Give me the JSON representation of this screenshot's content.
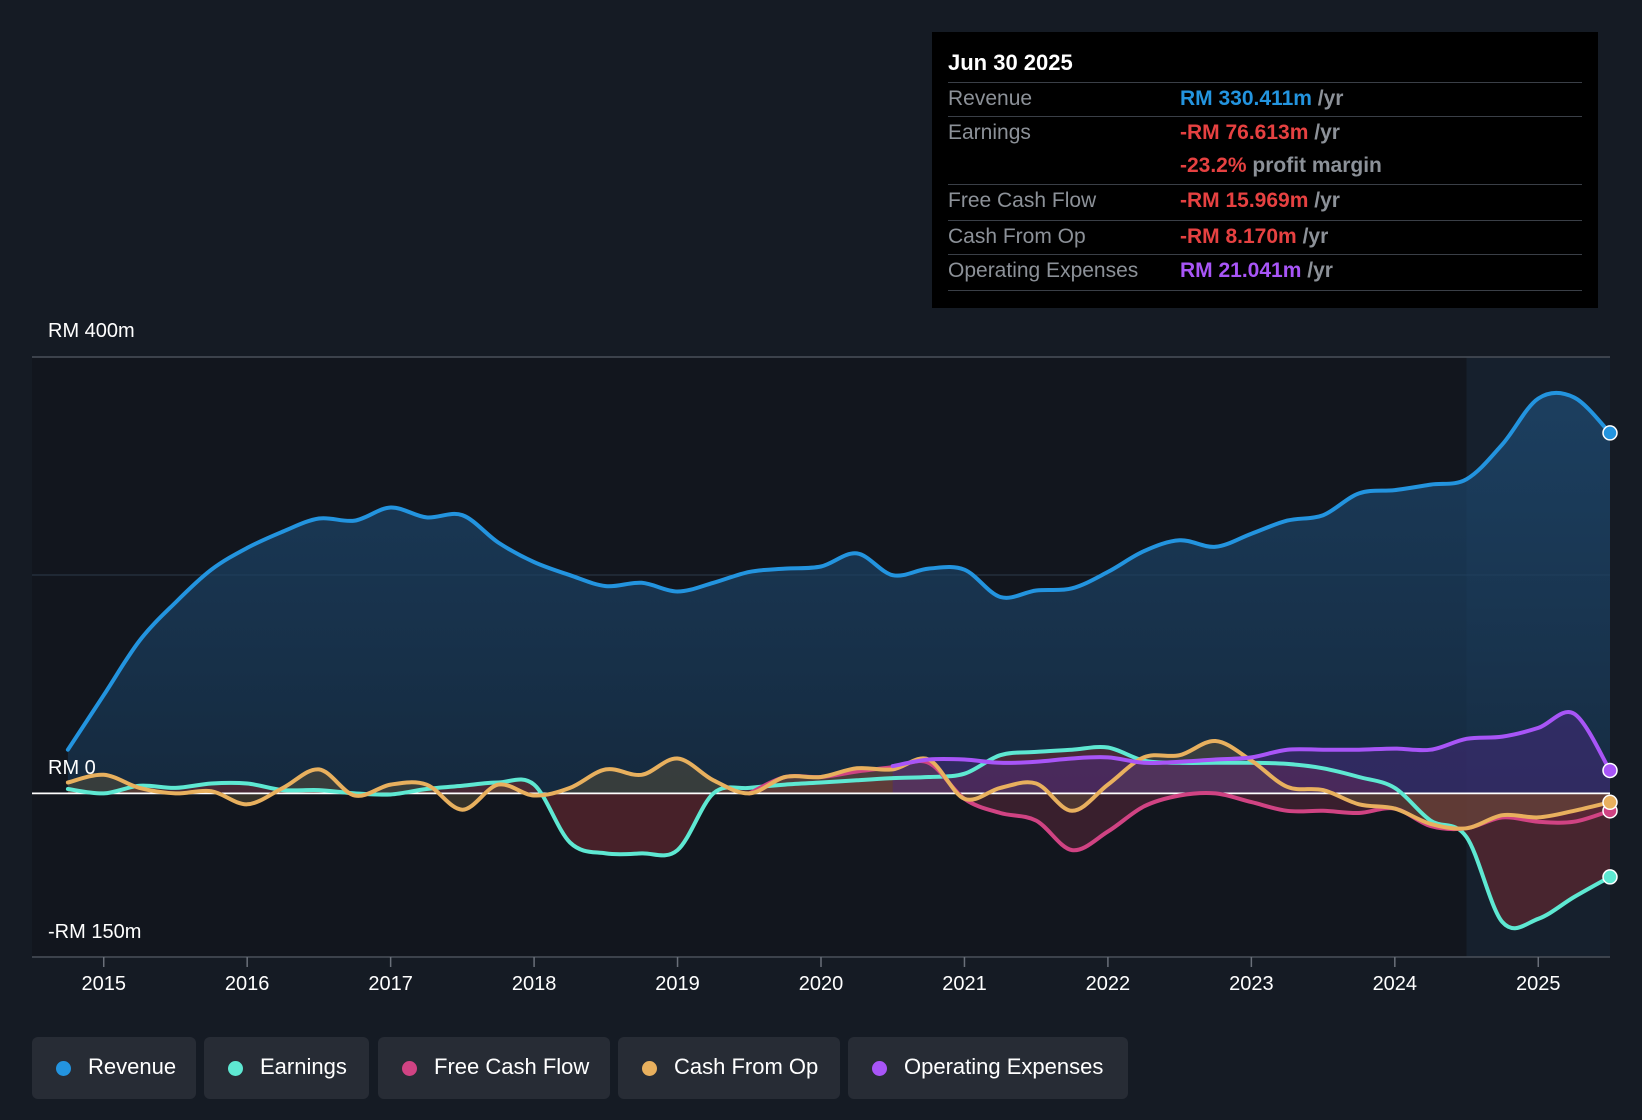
{
  "tooltip": {
    "date": "Jun 30 2025",
    "rows": [
      {
        "label": "Revenue",
        "value": "RM 330.411m",
        "unit": "/yr",
        "color": "#2394df"
      },
      {
        "label": "Earnings",
        "value": "-RM 76.613m",
        "unit": "/yr",
        "color": "#e64141"
      },
      {
        "label": "",
        "value": "-23.2%",
        "unit": "profit margin",
        "color": "#e64141"
      },
      {
        "label": "Free Cash Flow",
        "value": "-RM 15.969m",
        "unit": "/yr",
        "color": "#e64141"
      },
      {
        "label": "Cash From Op",
        "value": "-RM 8.170m",
        "unit": "/yr",
        "color": "#e64141"
      },
      {
        "label": "Operating Expenses",
        "value": "RM 21.041m",
        "unit": "/yr",
        "color": "#a855f7"
      }
    ]
  },
  "y_labels": {
    "top": "RM 400m",
    "zero": "RM 0",
    "bottom": "-RM 150m"
  },
  "chart_data": {
    "type": "line",
    "title": "",
    "xlabel": "",
    "ylabel": "",
    "xlim": [
      2014.5,
      2025.5
    ],
    "ylim": [
      -150,
      400
    ],
    "x_ticks": [
      "2015",
      "2016",
      "2017",
      "2018",
      "2019",
      "2020",
      "2021",
      "2022",
      "2023",
      "2024",
      "2025"
    ],
    "forecast_start": 2024.5,
    "series": [
      {
        "name": "Revenue",
        "color": "#2394df",
        "points": [
          [
            2014.75,
            40
          ],
          [
            2015,
            90
          ],
          [
            2015.25,
            140
          ],
          [
            2015.5,
            175
          ],
          [
            2015.75,
            205
          ],
          [
            2016,
            225
          ],
          [
            2016.25,
            240
          ],
          [
            2016.5,
            252
          ],
          [
            2016.75,
            250
          ],
          [
            2017,
            262
          ],
          [
            2017.25,
            253
          ],
          [
            2017.5,
            255
          ],
          [
            2017.75,
            230
          ],
          [
            2018,
            212
          ],
          [
            2018.25,
            200
          ],
          [
            2018.5,
            190
          ],
          [
            2018.75,
            193
          ],
          [
            2019,
            185
          ],
          [
            2019.25,
            193
          ],
          [
            2019.5,
            203
          ],
          [
            2019.75,
            206
          ],
          [
            2020,
            208
          ],
          [
            2020.25,
            220
          ],
          [
            2020.5,
            200
          ],
          [
            2020.75,
            206
          ],
          [
            2021,
            205
          ],
          [
            2021.25,
            180
          ],
          [
            2021.5,
            186
          ],
          [
            2021.75,
            188
          ],
          [
            2022,
            203
          ],
          [
            2022.25,
            222
          ],
          [
            2022.5,
            232
          ],
          [
            2022.75,
            226
          ],
          [
            2023,
            238
          ],
          [
            2023.25,
            250
          ],
          [
            2023.5,
            255
          ],
          [
            2023.75,
            275
          ],
          [
            2024,
            278
          ],
          [
            2024.25,
            283
          ],
          [
            2024.5,
            288
          ],
          [
            2024.75,
            320
          ],
          [
            2025,
            362
          ],
          [
            2025.25,
            363
          ],
          [
            2025.5,
            330.4
          ]
        ]
      },
      {
        "name": "Earnings",
        "color": "#5ee8d2",
        "points": [
          [
            2014.75,
            4
          ],
          [
            2015,
            0
          ],
          [
            2015.25,
            7
          ],
          [
            2015.5,
            5
          ],
          [
            2015.75,
            9
          ],
          [
            2016,
            9
          ],
          [
            2016.25,
            3
          ],
          [
            2016.5,
            3
          ],
          [
            2016.75,
            0
          ],
          [
            2017,
            -1
          ],
          [
            2017.25,
            4
          ],
          [
            2017.5,
            7
          ],
          [
            2017.75,
            10
          ],
          [
            2018,
            8
          ],
          [
            2018.25,
            -45
          ],
          [
            2018.5,
            -55
          ],
          [
            2018.75,
            -55
          ],
          [
            2019,
            -52
          ],
          [
            2019.25,
            0
          ],
          [
            2019.5,
            5
          ],
          [
            2019.75,
            8
          ],
          [
            2020,
            10
          ],
          [
            2020.25,
            12
          ],
          [
            2020.5,
            14
          ],
          [
            2020.75,
            15
          ],
          [
            2021,
            18
          ],
          [
            2021.25,
            35
          ],
          [
            2021.5,
            38
          ],
          [
            2021.75,
            40
          ],
          [
            2022,
            42
          ],
          [
            2022.25,
            30
          ],
          [
            2022.5,
            28
          ],
          [
            2022.75,
            28
          ],
          [
            2023,
            28
          ],
          [
            2023.25,
            27
          ],
          [
            2023.5,
            23
          ],
          [
            2023.75,
            15
          ],
          [
            2024,
            5
          ],
          [
            2024.25,
            -25
          ],
          [
            2024.5,
            -40
          ],
          [
            2024.75,
            -118
          ],
          [
            2025,
            -115
          ],
          [
            2025.25,
            -95
          ],
          [
            2025.5,
            -76.6
          ]
        ]
      },
      {
        "name": "Free Cash Flow",
        "color": "#d04383",
        "points": [
          [
            2019.5,
            0
          ],
          [
            2019.75,
            15
          ],
          [
            2020,
            15
          ],
          [
            2020.25,
            20
          ],
          [
            2020.5,
            24
          ],
          [
            2020.75,
            28
          ],
          [
            2021,
            -5
          ],
          [
            2021.25,
            -18
          ],
          [
            2021.5,
            -25
          ],
          [
            2021.75,
            -52
          ],
          [
            2022,
            -35
          ],
          [
            2022.25,
            -12
          ],
          [
            2022.5,
            -2
          ],
          [
            2022.75,
            0
          ],
          [
            2023,
            -8
          ],
          [
            2023.25,
            -16
          ],
          [
            2023.5,
            -16
          ],
          [
            2023.75,
            -18
          ],
          [
            2024,
            -14
          ],
          [
            2024.25,
            -30
          ],
          [
            2024.5,
            -32
          ],
          [
            2024.75,
            -22
          ],
          [
            2025,
            -26
          ],
          [
            2025.25,
            -26
          ],
          [
            2025.5,
            -16
          ]
        ]
      },
      {
        "name": "Cash From Op",
        "color": "#e8b05e",
        "points": [
          [
            2014.75,
            10
          ],
          [
            2015,
            17
          ],
          [
            2015.25,
            5
          ],
          [
            2015.5,
            0
          ],
          [
            2015.75,
            2
          ],
          [
            2016,
            -10
          ],
          [
            2016.25,
            5
          ],
          [
            2016.5,
            22
          ],
          [
            2016.75,
            -2
          ],
          [
            2017,
            8
          ],
          [
            2017.25,
            8
          ],
          [
            2017.5,
            -15
          ],
          [
            2017.75,
            8
          ],
          [
            2018,
            -2
          ],
          [
            2018.25,
            5
          ],
          [
            2018.5,
            22
          ],
          [
            2018.75,
            17
          ],
          [
            2019,
            32
          ],
          [
            2019.25,
            12
          ],
          [
            2019.5,
            0
          ],
          [
            2019.75,
            15
          ],
          [
            2020,
            15
          ],
          [
            2020.25,
            23
          ],
          [
            2020.5,
            22
          ],
          [
            2020.75,
            31
          ],
          [
            2021,
            -5
          ],
          [
            2021.25,
            5
          ],
          [
            2021.5,
            9
          ],
          [
            2021.75,
            -16
          ],
          [
            2022,
            8
          ],
          [
            2022.25,
            33
          ],
          [
            2022.5,
            35
          ],
          [
            2022.75,
            48
          ],
          [
            2023,
            30
          ],
          [
            2023.25,
            6
          ],
          [
            2023.5,
            3
          ],
          [
            2023.75,
            -10
          ],
          [
            2024,
            -14
          ],
          [
            2024.25,
            -28
          ],
          [
            2024.5,
            -32
          ],
          [
            2024.75,
            -20
          ],
          [
            2025,
            -22
          ],
          [
            2025.25,
            -16
          ],
          [
            2025.5,
            -8.2
          ]
        ]
      },
      {
        "name": "Operating Expenses",
        "color": "#a855f7",
        "points": [
          [
            2020.5,
            25
          ],
          [
            2020.75,
            31
          ],
          [
            2021,
            31
          ],
          [
            2021.25,
            28
          ],
          [
            2021.5,
            29
          ],
          [
            2021.75,
            32
          ],
          [
            2022,
            33
          ],
          [
            2022.25,
            28
          ],
          [
            2022.5,
            29
          ],
          [
            2022.75,
            31
          ],
          [
            2023,
            33
          ],
          [
            2023.25,
            40
          ],
          [
            2023.5,
            40
          ],
          [
            2023.75,
            40
          ],
          [
            2024,
            41
          ],
          [
            2024.25,
            40
          ],
          [
            2024.5,
            50
          ],
          [
            2024.75,
            52
          ],
          [
            2025,
            60
          ],
          [
            2025.25,
            73
          ],
          [
            2025.5,
            21.0
          ]
        ]
      }
    ]
  },
  "legend": [
    {
      "label": "Revenue",
      "color": "#2394df"
    },
    {
      "label": "Earnings",
      "color": "#5ee8d2"
    },
    {
      "label": "Free Cash Flow",
      "color": "#d04383"
    },
    {
      "label": "Cash From Op",
      "color": "#e8b05e"
    },
    {
      "label": "Operating Expenses",
      "color": "#a855f7"
    }
  ]
}
